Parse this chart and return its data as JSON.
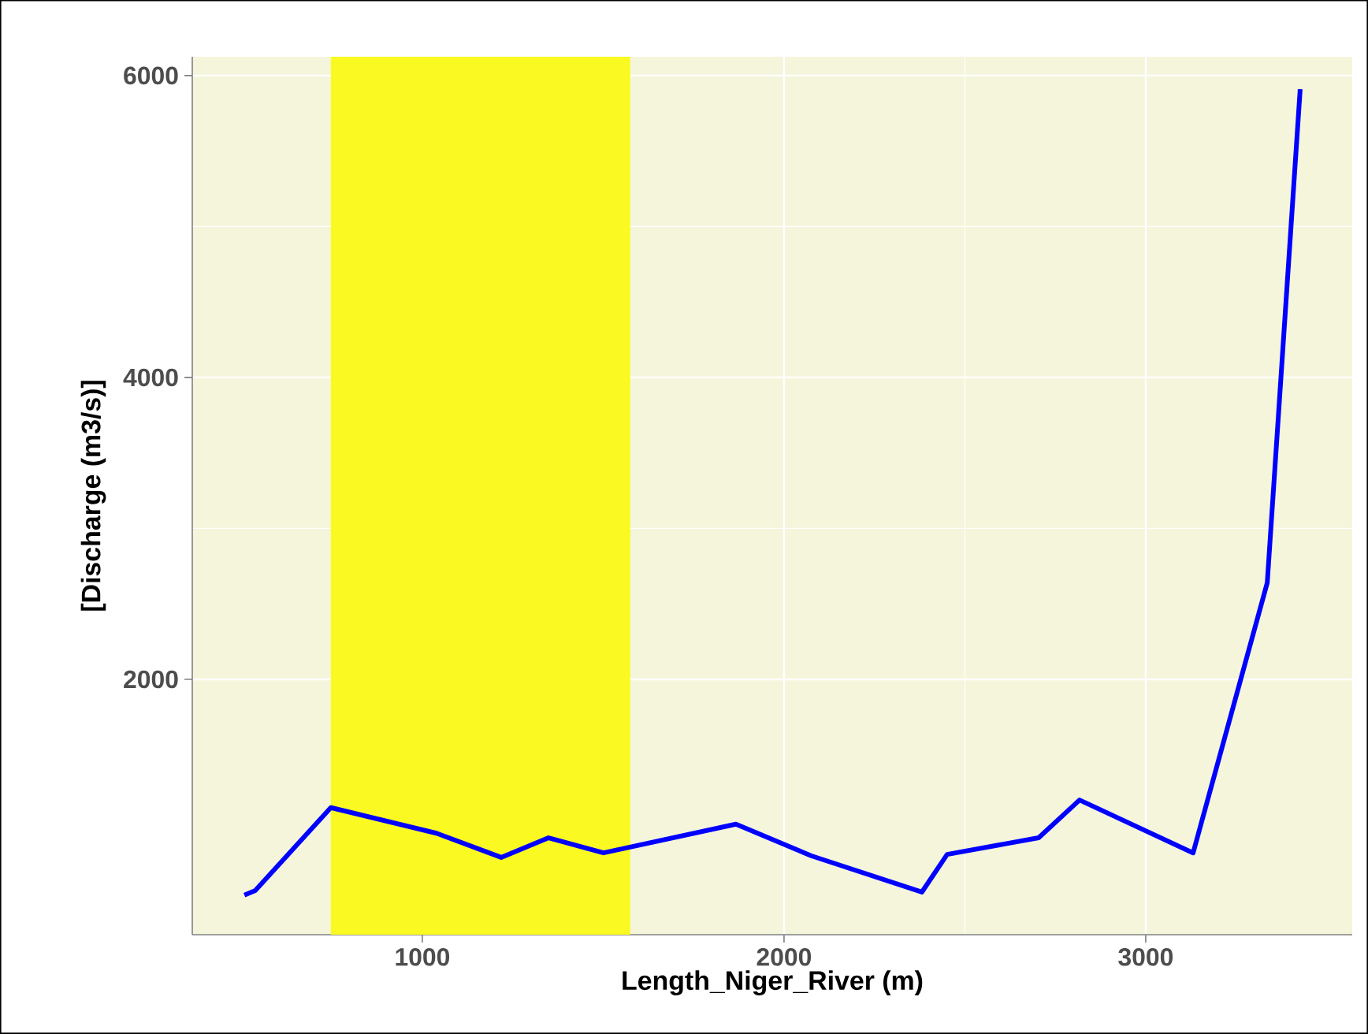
{
  "chart_data": {
    "type": "line",
    "xlabel": "Length_Niger_River (m)",
    "ylabel": "[Discharge (m3/s)]",
    "x": [
      508,
      538,
      747,
      1039,
      1218,
      1349,
      1501,
      1867,
      2076,
      2381,
      2451,
      2704,
      2817,
      3131,
      3336,
      3427
    ],
    "series": [
      {
        "color": "#0000ff",
        "values": [
          570,
          600,
          1150,
          980,
          820,
          950,
          850,
          1040,
          830,
          590,
          840,
          950,
          1200,
          850,
          2640,
          5910
        ]
      }
    ],
    "xlim": [
      364,
      3571
    ],
    "ylim": [
      308,
      6125
    ],
    "xticks": [
      1000,
      2000,
      3000
    ],
    "yticks": [
      2000,
      4000,
      6000
    ],
    "grid": true,
    "bands": [
      {
        "axis": "x",
        "from": 747,
        "to": 1575,
        "color": "#fafa22"
      }
    ]
  }
}
